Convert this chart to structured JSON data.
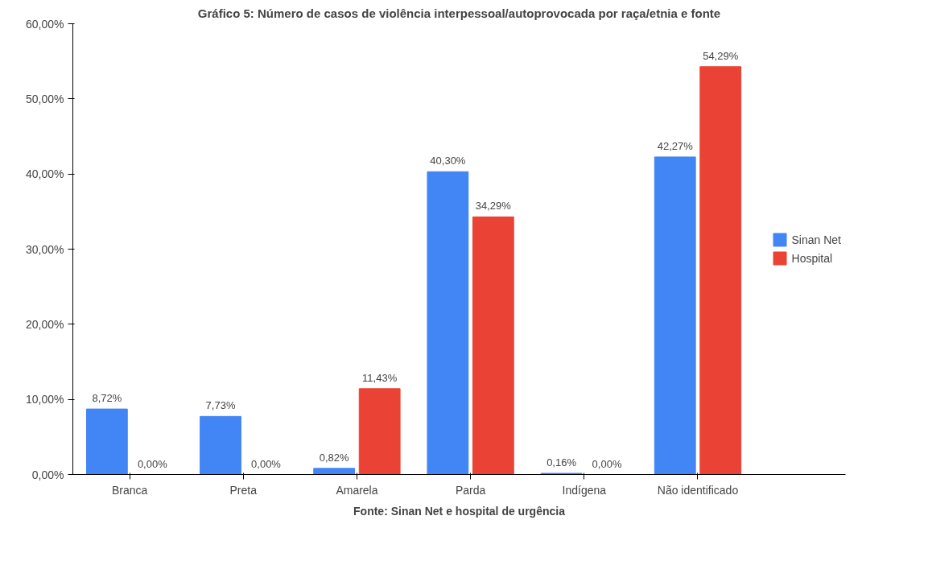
{
  "chart_data": {
    "type": "bar",
    "title": "Gráfico 5: Número de casos de violência interpessoal/autoprovocada por raça/etnia e fonte",
    "categories": [
      "Branca",
      "Preta",
      "Amarela",
      "Parda",
      "Indígena",
      "Não identificado"
    ],
    "series": [
      {
        "name": "Sinan Net",
        "color": "#4285f4",
        "values": [
          8.72,
          7.73,
          0.82,
          40.3,
          0.16,
          42.27
        ],
        "value_labels": [
          "8,72%",
          "7,73%",
          "0,82%",
          "40,30%",
          "0,16%",
          "42,27%"
        ]
      },
      {
        "name": "Hospital",
        "color": "#ea4335",
        "values": [
          0,
          0,
          11.43,
          34.29,
          0,
          54.29
        ],
        "value_labels": [
          "0,00%",
          "0,00%",
          "11,43%",
          "34,29%",
          "0,00%",
          "54,29%"
        ]
      }
    ],
    "ylim": [
      0,
      60
    ],
    "yticks": [
      {
        "value": 0,
        "label": "0,00%"
      },
      {
        "value": 10,
        "label": "10,00%"
      },
      {
        "value": 20,
        "label": "20,00%"
      },
      {
        "value": 30,
        "label": "30,00%"
      },
      {
        "value": 40,
        "label": "40,00%"
      },
      {
        "value": 50,
        "label": "50,00%"
      },
      {
        "value": 60,
        "label": "60,00%"
      }
    ],
    "grid": false,
    "legend": "right",
    "annotations": [
      "Fonte: Sinan Net e hospital de urgência"
    ]
  }
}
